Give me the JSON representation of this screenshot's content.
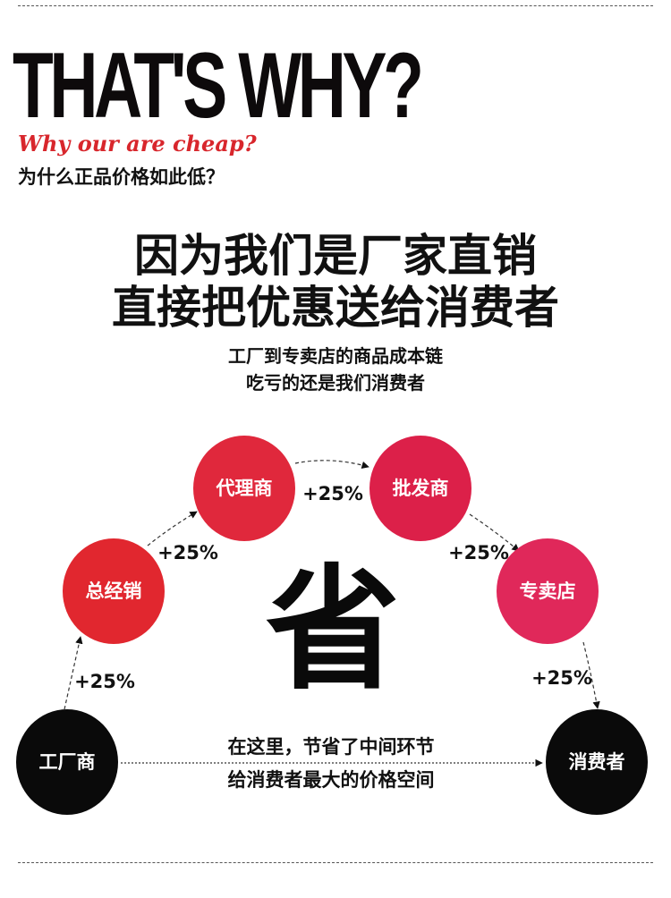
{
  "header": {
    "title": "THAT'S WHY?",
    "script_subtitle": "Why our are cheap?",
    "cn_subtitle": "为什么正品价格如此低？"
  },
  "headline": {
    "line1": "因为我们是厂家直销",
    "line2": "直接把优惠送给消费者"
  },
  "subheadline": {
    "line1": "工厂到专卖店的商品成本链",
    "line2": "吃亏的还是我们消费者"
  },
  "diagram": {
    "center_char": "省",
    "nodes": [
      {
        "label": "工厂商",
        "color": "#0a0a0a"
      },
      {
        "label": "总经销",
        "color": "#e1272f"
      },
      {
        "label": "代理商",
        "color": "#e0283c"
      },
      {
        "label": "批发商",
        "color": "#dc2049"
      },
      {
        "label": "专卖店",
        "color": "#e0285a"
      },
      {
        "label": "消费者",
        "color": "#0a0a0a"
      }
    ],
    "markups": [
      "+25%",
      "+25%",
      "+25%",
      "+25%",
      "+25%"
    ],
    "note_line1": "在这里，节省了中间环节",
    "note_line2": "给消费者最大的价格空间"
  }
}
